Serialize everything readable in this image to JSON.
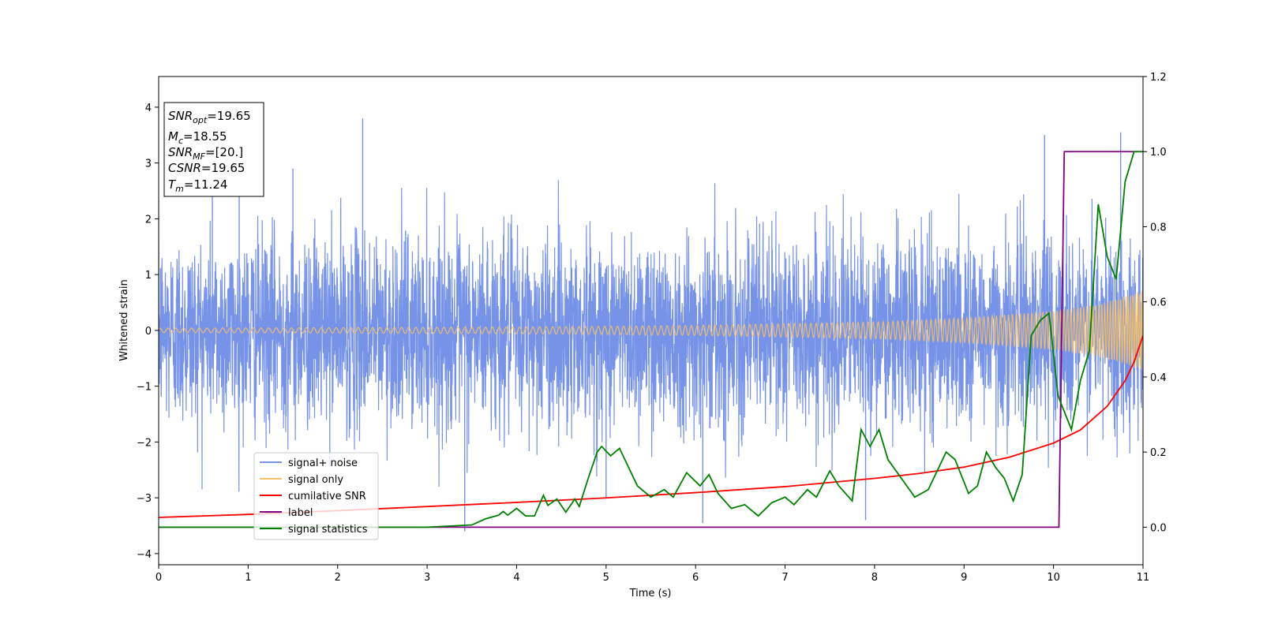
{
  "chart_data": {
    "type": "line",
    "xlabel": "Time (s)",
    "ylabel": "Whitened strain",
    "xlim": [
      0,
      11
    ],
    "ylim_left": [
      -4.2,
      4.55
    ],
    "ylim_right": [
      -0.1,
      1.2
    ],
    "x_ticks": [
      0,
      1,
      2,
      3,
      4,
      5,
      6,
      7,
      8,
      9,
      10,
      11
    ],
    "y_ticks_left": [
      -4,
      -3,
      -2,
      -1,
      0,
      1,
      2,
      3,
      4
    ],
    "y_tick_labels_left": [
      "−4",
      "−3",
      "−2",
      "−1",
      "0",
      "1",
      "2",
      "3",
      "4"
    ],
    "y_ticks_right": [
      0.0,
      0.2,
      0.4,
      0.6,
      0.8,
      1.0,
      1.2
    ],
    "y_tick_labels_right": [
      "0.0",
      "0.2",
      "0.4",
      "0.6",
      "0.8",
      "1.0",
      "1.2"
    ],
    "grid": false,
    "legend_position": "lower-left",
    "info_box": [
      {
        "base": "SNR",
        "sub": "opt",
        "value": "=19.65"
      },
      {
        "base": "M",
        "sub": "c",
        "value": "=18.55"
      },
      {
        "base": "SNR",
        "sub": "MF",
        "value": "=[20.]"
      },
      {
        "base": "CSNR",
        "sub": "",
        "value": "=19.65"
      },
      {
        "base": "T",
        "sub": "m",
        "value": "=11.24"
      }
    ],
    "series": [
      {
        "name": "signal+ noise",
        "axis": "left",
        "color": "#7793e8",
        "description_values": {
          "noise_sigma": 0.85,
          "spikes": [
            [
              0.6,
              2.9
            ],
            [
              0.9,
              2.7
            ],
            [
              1.5,
              2.9
            ],
            [
              2.28,
              3.8
            ],
            [
              3.42,
              -3.6
            ],
            [
              5.0,
              -3.0
            ],
            [
              6.08,
              -3.45
            ],
            [
              7.9,
              -3.4
            ],
            [
              9.9,
              3.5
            ],
            [
              10.75,
              3.55
            ]
          ]
        }
      },
      {
        "name": "signal only",
        "axis": "left",
        "color": "#f5c067",
        "envelope": [
          [
            0,
            0.04
          ],
          [
            2,
            0.05
          ],
          [
            4,
            0.06
          ],
          [
            6,
            0.09
          ],
          [
            8,
            0.15
          ],
          [
            9,
            0.22
          ],
          [
            10,
            0.35
          ],
          [
            10.5,
            0.47
          ],
          [
            11,
            0.72
          ]
        ]
      },
      {
        "name": "cumilative SNR",
        "axis": "right",
        "color": "#ff0000",
        "points": [
          [
            0,
            0.026
          ],
          [
            1,
            0.034
          ],
          [
            2,
            0.044
          ],
          [
            3,
            0.055
          ],
          [
            4,
            0.066
          ],
          [
            5,
            0.078
          ],
          [
            6,
            0.092
          ],
          [
            7,
            0.108
          ],
          [
            8,
            0.13
          ],
          [
            8.5,
            0.143
          ],
          [
            9,
            0.16
          ],
          [
            9.5,
            0.186
          ],
          [
            10,
            0.224
          ],
          [
            10.3,
            0.259
          ],
          [
            10.6,
            0.322
          ],
          [
            10.8,
            0.39
          ],
          [
            10.9,
            0.44
          ],
          [
            11,
            0.51
          ]
        ]
      },
      {
        "name": "label",
        "axis": "right",
        "color": "#800080",
        "points": [
          [
            0,
            0.0
          ],
          [
            10.06,
            0.0
          ],
          [
            10.12,
            1.0
          ],
          [
            11,
            1.0
          ]
        ]
      },
      {
        "name": "signal statistics",
        "axis": "right",
        "color": "#008000",
        "points": [
          [
            0,
            0.0
          ],
          [
            2.5,
            0.0
          ],
          [
            3.0,
            0.0
          ],
          [
            3.5,
            0.006
          ],
          [
            3.65,
            0.022
          ],
          [
            3.8,
            0.032
          ],
          [
            3.85,
            0.042
          ],
          [
            3.9,
            0.032
          ],
          [
            4.0,
            0.05
          ],
          [
            4.1,
            0.03
          ],
          [
            4.2,
            0.03
          ],
          [
            4.3,
            0.085
          ],
          [
            4.35,
            0.058
          ],
          [
            4.45,
            0.075
          ],
          [
            4.55,
            0.04
          ],
          [
            4.65,
            0.075
          ],
          [
            4.7,
            0.055
          ],
          [
            4.8,
            0.13
          ],
          [
            4.9,
            0.2
          ],
          [
            4.95,
            0.215
          ],
          [
            5.05,
            0.19
          ],
          [
            5.15,
            0.21
          ],
          [
            5.25,
            0.16
          ],
          [
            5.35,
            0.11
          ],
          [
            5.5,
            0.08
          ],
          [
            5.65,
            0.1
          ],
          [
            5.75,
            0.08
          ],
          [
            5.9,
            0.145
          ],
          [
            6.05,
            0.11
          ],
          [
            6.15,
            0.14
          ],
          [
            6.25,
            0.09
          ],
          [
            6.4,
            0.05
          ],
          [
            6.55,
            0.06
          ],
          [
            6.7,
            0.03
          ],
          [
            6.85,
            0.065
          ],
          [
            7.0,
            0.08
          ],
          [
            7.1,
            0.06
          ],
          [
            7.25,
            0.1
          ],
          [
            7.35,
            0.08
          ],
          [
            7.5,
            0.15
          ],
          [
            7.6,
            0.11
          ],
          [
            7.75,
            0.07
          ],
          [
            7.85,
            0.26
          ],
          [
            7.95,
            0.215
          ],
          [
            8.05,
            0.26
          ],
          [
            8.15,
            0.18
          ],
          [
            8.3,
            0.13
          ],
          [
            8.45,
            0.08
          ],
          [
            8.6,
            0.1
          ],
          [
            8.7,
            0.15
          ],
          [
            8.8,
            0.2
          ],
          [
            8.9,
            0.18
          ],
          [
            9.05,
            0.09
          ],
          [
            9.15,
            0.11
          ],
          [
            9.25,
            0.2
          ],
          [
            9.35,
            0.16
          ],
          [
            9.45,
            0.13
          ],
          [
            9.55,
            0.07
          ],
          [
            9.65,
            0.14
          ],
          [
            9.75,
            0.51
          ],
          [
            9.85,
            0.55
          ],
          [
            9.95,
            0.57
          ],
          [
            10.05,
            0.35
          ],
          [
            10.2,
            0.26
          ],
          [
            10.3,
            0.39
          ],
          [
            10.4,
            0.47
          ],
          [
            10.5,
            0.86
          ],
          [
            10.6,
            0.72
          ],
          [
            10.7,
            0.66
          ],
          [
            10.8,
            0.92
          ],
          [
            10.9,
            1.0
          ],
          [
            11.0,
            1.0
          ]
        ]
      }
    ]
  }
}
